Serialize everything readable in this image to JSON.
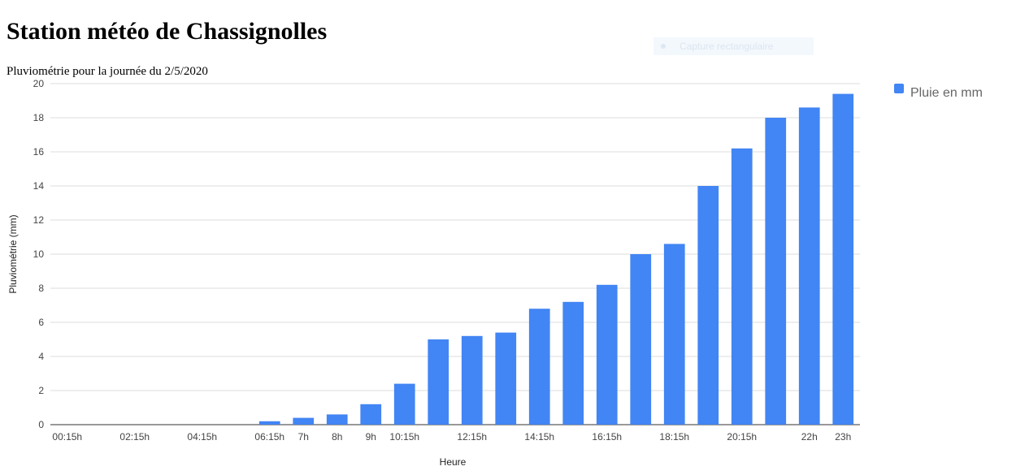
{
  "chart_data": {
    "type": "bar",
    "title": "Station météo de Chassignolles",
    "subtitle": "Pluviométrie pour la journée du 2/5/2020",
    "overlay_text": "Capture rectangulaire",
    "x_label": "Heure",
    "y_label": "Pluviométrie (mm)",
    "categories": [
      "00:15h",
      null,
      "02:15h",
      null,
      "04:15h",
      null,
      "06:15h",
      "7h",
      "8h",
      "9h",
      "10:15h",
      null,
      "12:15h",
      null,
      "14:15h",
      null,
      "16:15h",
      null,
      "18:15h",
      null,
      "20:15h",
      null,
      "22h",
      "23h"
    ],
    "series": [
      {
        "name": "Pluie en mm",
        "color": "#4285f4",
        "values": [
          0,
          0,
          0,
          0,
          0,
          0,
          0.2,
          0.4,
          0.6,
          1.2,
          2.4,
          5.0,
          5.2,
          5.4,
          6.8,
          7.2,
          8.2,
          10.0,
          10.6,
          14.0,
          16.2,
          18.0,
          18.6,
          19.4
        ]
      }
    ],
    "ylim": [
      0,
      20
    ],
    "yticks": [
      0,
      2,
      4,
      6,
      8,
      10,
      12,
      14,
      16,
      18,
      20
    ],
    "grid": true,
    "legend": "right"
  }
}
